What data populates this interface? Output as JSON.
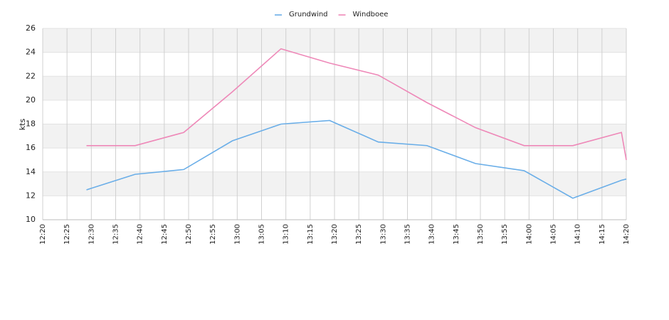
{
  "chart_data": {
    "type": "line",
    "y_label": "kts",
    "x": [
      "12:29",
      "12:39",
      "12:49",
      "12:59",
      "13:09",
      "13:19",
      "13:29",
      "13:39",
      "13:49",
      "13:59",
      "14:09",
      "14:19",
      "14:20"
    ],
    "series": [
      {
        "name": "Grundwind",
        "color": "#6aaee8",
        "values": [
          12.5,
          13.8,
          14.2,
          16.6,
          18.0,
          18.3,
          16.5,
          16.2,
          14.7,
          14.1,
          11.8,
          13.3,
          13.4
        ]
      },
      {
        "name": "Windboee",
        "color": "#ee88b8",
        "values": [
          16.2,
          16.2,
          17.3,
          20.7,
          24.3,
          23.1,
          22.1,
          19.8,
          17.7,
          16.2,
          16.2,
          17.3,
          15.0
        ]
      }
    ],
    "xlim": [
      "12:20",
      "14:20"
    ],
    "xticks": [
      "12:20",
      "12:25",
      "12:30",
      "12:35",
      "12:40",
      "12:45",
      "12:50",
      "12:55",
      "13:00",
      "13:05",
      "13:10",
      "13:15",
      "13:20",
      "13:25",
      "13:30",
      "13:35",
      "13:40",
      "13:45",
      "13:50",
      "13:55",
      "14:00",
      "14:05",
      "14:10",
      "14:15",
      "14:20"
    ],
    "ylim": [
      10,
      26
    ],
    "yticks": [
      10,
      12,
      14,
      16,
      18,
      20,
      22,
      24,
      26
    ],
    "grid": true,
    "bands": true,
    "legend": "top"
  }
}
